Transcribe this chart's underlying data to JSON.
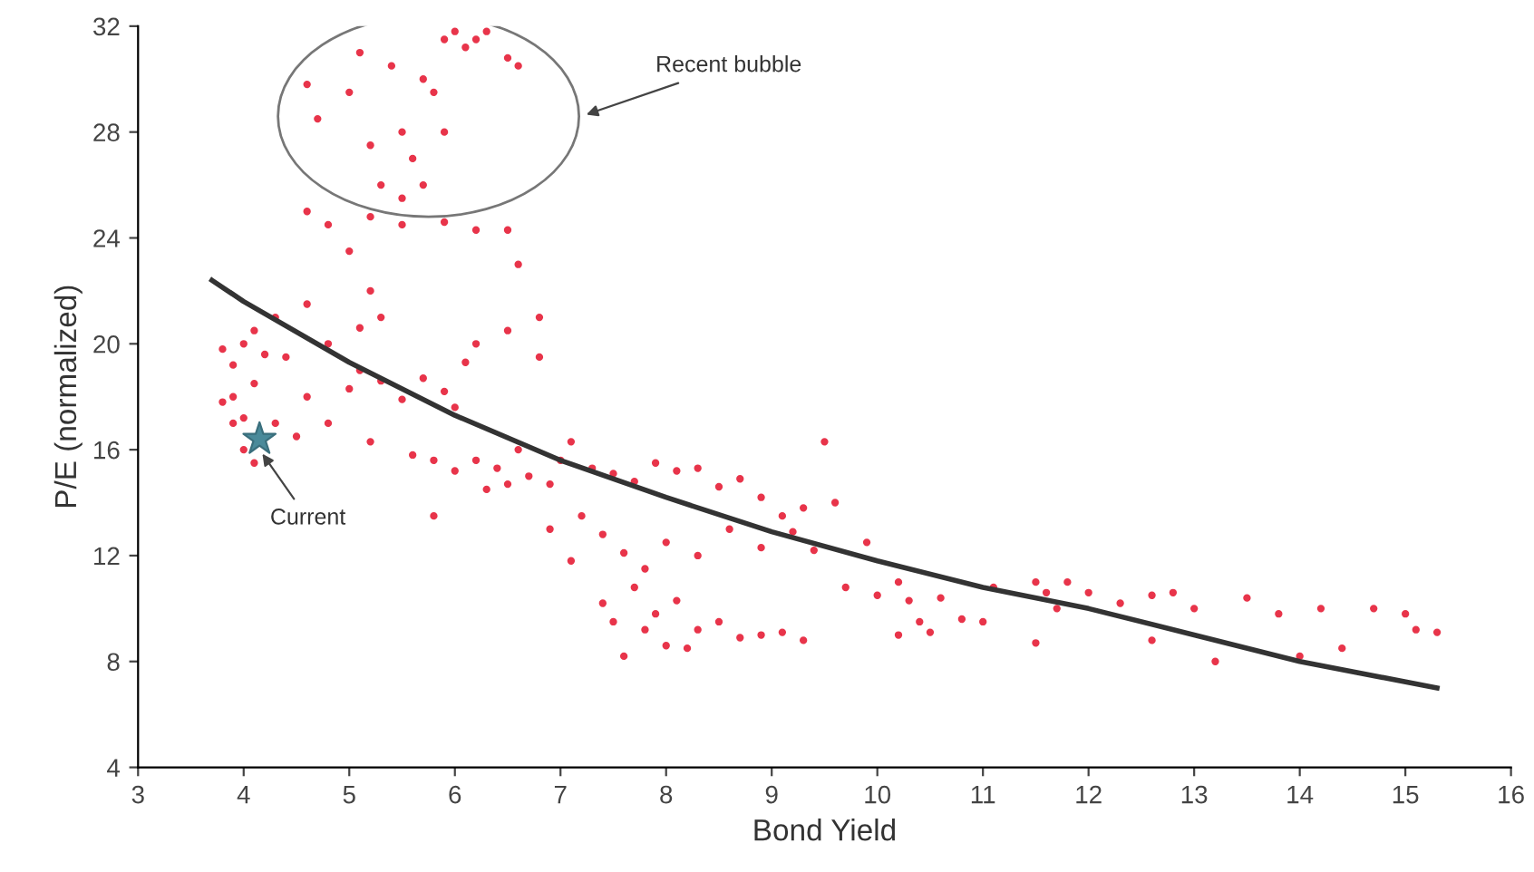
{
  "chart_data": {
    "type": "scatter",
    "xlabel": "Bond Yield",
    "ylabel": "P/E (normalized)",
    "xlim": [
      3,
      16
    ],
    "xticks": [
      3,
      4,
      5,
      6,
      7,
      8,
      9,
      10,
      11,
      12,
      13,
      14,
      15,
      16
    ],
    "ylim": [
      4,
      32
    ],
    "yticks": [
      4,
      8,
      12,
      16,
      20,
      24,
      28,
      32
    ],
    "grid": false,
    "series": [
      {
        "color": "#e8344a",
        "marker": "circle",
        "x": [
          4.6,
          4.7,
          5.0,
          5.1,
          5.2,
          5.4,
          5.5,
          5.6,
          5.7,
          5.8,
          5.9,
          6.0,
          6.1,
          6.2,
          6.3,
          6.6,
          6.5,
          5.9,
          5.7,
          5.3,
          5.5,
          4.6,
          4.8,
          5.2,
          5.5,
          5.9,
          6.2,
          6.5,
          5.0,
          5.2,
          5.3,
          6.6,
          6.8,
          6.5,
          6.8,
          4.6,
          4.8,
          5.1,
          5.1,
          6.2,
          6.1,
          3.8,
          3.9,
          4.0,
          4.1,
          4.2,
          4.3,
          3.9,
          4.0,
          3.9,
          4.1,
          4.0,
          4.1,
          4.3,
          4.4,
          3.8,
          4.6,
          4.8,
          5.0,
          5.3,
          5.5,
          5.7,
          5.9,
          6.0,
          4.5,
          5.2,
          5.6,
          5.8,
          6.0,
          6.2,
          6.4,
          6.6,
          6.7,
          6.9,
          7.0,
          7.1,
          7.3,
          7.5,
          7.7,
          7.9,
          8.1,
          8.3,
          8.5,
          8.7,
          8.9,
          9.1,
          9.3,
          9.5,
          9.6,
          6.3,
          6.5,
          5.8,
          7.2,
          7.4,
          7.6,
          7.8,
          8.0,
          8.3,
          8.6,
          8.9,
          9.2,
          9.4,
          6.9,
          7.1,
          7.4,
          7.5,
          7.6,
          7.7,
          7.9,
          8.0,
          8.1,
          8.3,
          8.5,
          8.7,
          8.9,
          9.1,
          9.3,
          8.2,
          7.8,
          10.2,
          10.3,
          10.4,
          10.5,
          10.6,
          10.2,
          10.8,
          11.1,
          11.0,
          11.5,
          11.6,
          11.8,
          11.7,
          11.5,
          12.0,
          12.3,
          12.6,
          12.8,
          12.6,
          13.0,
          13.2,
          13.5,
          13.8,
          14.0,
          14.2,
          14.4,
          14.7,
          15.0,
          15.1,
          15.3,
          9.9,
          9.7,
          10.0
        ],
        "values": [
          29.8,
          28.5,
          29.5,
          31,
          27.5,
          30.5,
          28,
          27,
          26,
          29.5,
          31.5,
          31.8,
          31.2,
          31.5,
          31.8,
          30.5,
          30.8,
          28,
          30,
          26,
          25.5,
          25,
          24.5,
          24.8,
          24.5,
          24.6,
          24.3,
          24.3,
          23.5,
          22,
          21,
          23,
          21,
          20.5,
          19.5,
          21.5,
          20,
          20.6,
          19,
          20,
          19.3,
          19.8,
          19.2,
          20,
          20.5,
          19.6,
          21,
          18,
          17.2,
          17,
          18.5,
          16,
          15.5,
          17,
          19.5,
          17.8,
          18,
          17,
          18.3,
          18.6,
          17.9,
          18.7,
          18.2,
          17.6,
          16.5,
          16.3,
          15.8,
          15.6,
          15.2,
          15.6,
          15.3,
          16,
          15,
          14.7,
          15.6,
          16.3,
          15.3,
          15.1,
          14.8,
          15.5,
          15.2,
          15.3,
          14.6,
          14.9,
          14.2,
          13.5,
          13.8,
          16.3,
          14,
          14.5,
          14.7,
          13.5,
          13.5,
          12.8,
          12.1,
          11.5,
          12.5,
          12,
          13,
          12.3,
          12.9,
          12.2,
          13,
          11.8,
          10.2,
          9.5,
          8.2,
          10.8,
          9.8,
          8.6,
          10.3,
          9.2,
          9.5,
          8.9,
          9.0,
          9.1,
          8.8,
          8.5,
          9.2,
          11,
          10.3,
          9.5,
          9.1,
          10.4,
          9,
          9.6,
          10.8,
          9.5,
          11,
          10.6,
          11,
          10,
          8.7,
          10.6,
          10.2,
          10.5,
          10.6,
          8.8,
          10,
          8,
          10.4,
          9.8,
          8.2,
          10,
          8.5,
          10,
          9.8,
          9.2,
          9.1,
          12.5,
          10.8,
          10.5
        ]
      },
      {
        "type": "line",
        "color": "#333333",
        "marker": "none",
        "line_style": "solid",
        "x": [
          3.7,
          4,
          5,
          6,
          7,
          8,
          9,
          10,
          11,
          12,
          13,
          14,
          15.3
        ],
        "values": [
          22.4,
          21.6,
          19.3,
          17.3,
          15.6,
          14.2,
          12.9,
          11.8,
          10.8,
          10.0,
          9.0,
          8.0,
          7.0
        ]
      },
      {
        "type": "scatter",
        "color": "#4a8a9a",
        "marker": "star",
        "x": [
          4.15
        ],
        "values": [
          16.4
        ]
      }
    ],
    "annotations": [
      "Recent bubble",
      {
        "text": "Current",
        "x": 4.15,
        "y": 16.0
      }
    ]
  }
}
